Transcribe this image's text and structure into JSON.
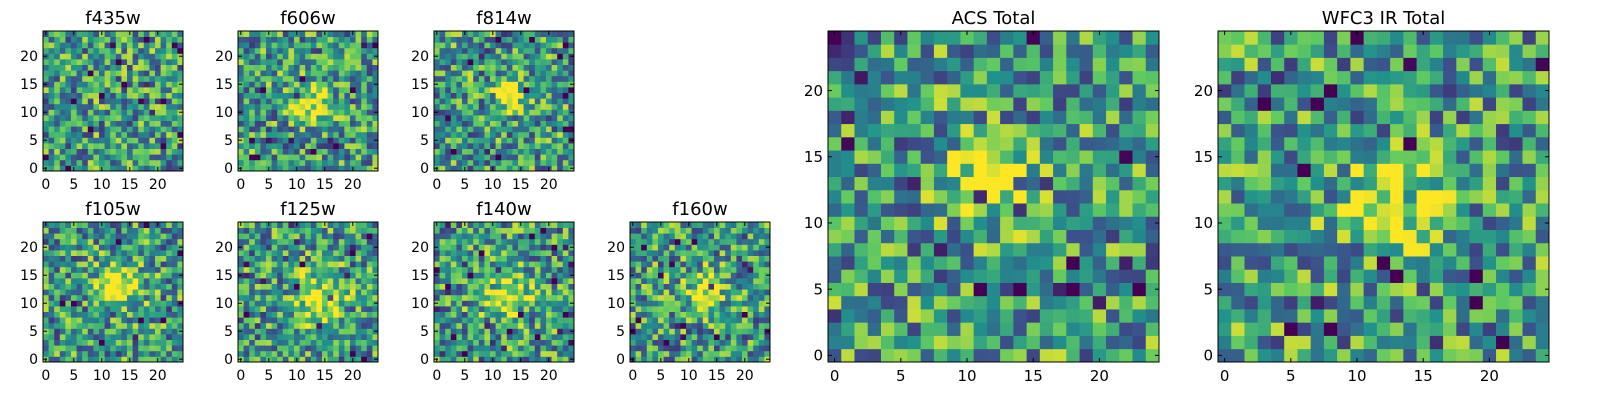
{
  "figure": {
    "colormap": [
      "#440154",
      "#3b528b",
      "#21918c",
      "#5ec962",
      "#fde725"
    ],
    "frame_color": "#000000",
    "background": "#ffffff"
  },
  "chart_data": [
    {
      "type": "heatmap",
      "title": "f435w",
      "grid": false,
      "xlim": [
        -0.5,
        24.5
      ],
      "ylim": [
        -0.5,
        24.5
      ],
      "xticks": [
        "0",
        "5",
        "10",
        "15",
        "20"
      ],
      "yticks": [
        "0",
        "5",
        "10",
        "15",
        "20"
      ],
      "size": 25,
      "values_note": "noise image, values in [0,1] normalized display",
      "peak": null
    },
    {
      "type": "heatmap",
      "title": "f606w",
      "grid": false,
      "xlim": [
        -0.5,
        24.5
      ],
      "ylim": [
        -0.5,
        24.5
      ],
      "xticks": [
        "0",
        "5",
        "10",
        "15",
        "20"
      ],
      "yticks": [
        "0",
        "5",
        "10",
        "15",
        "20"
      ],
      "size": 25,
      "peak": {
        "x": 13,
        "y": 12,
        "amplitude": 0.45,
        "sigma": 2.2
      }
    },
    {
      "type": "heatmap",
      "title": "f814w",
      "grid": false,
      "xlim": [
        -0.5,
        24.5
      ],
      "ylim": [
        -0.5,
        24.5
      ],
      "xticks": [
        "0",
        "5",
        "10",
        "15",
        "20"
      ],
      "yticks": [
        "0",
        "5",
        "10",
        "15",
        "20"
      ],
      "size": 25,
      "peak": {
        "x": 13,
        "y": 13,
        "amplitude": 0.45,
        "sigma": 2.0
      }
    },
    {
      "type": "heatmap",
      "title": "f105w",
      "grid": false,
      "xlim": [
        -0.5,
        24.5
      ],
      "ylim": [
        -0.5,
        24.5
      ],
      "xticks": [
        "0",
        "5",
        "10",
        "15",
        "20"
      ],
      "yticks": [
        "0",
        "5",
        "10",
        "15",
        "20"
      ],
      "size": 25,
      "peak": {
        "x": 13,
        "y": 13,
        "amplitude": 0.55,
        "sigma": 2.6
      }
    },
    {
      "type": "heatmap",
      "title": "f125w",
      "grid": false,
      "xlim": [
        -0.5,
        24.5
      ],
      "ylim": [
        -0.5,
        24.5
      ],
      "xticks": [
        "0",
        "5",
        "10",
        "15",
        "20"
      ],
      "yticks": [
        "0",
        "5",
        "10",
        "15",
        "20"
      ],
      "size": 25,
      "peak": {
        "x": 14,
        "y": 11,
        "amplitude": 0.5,
        "sigma": 3.0
      }
    },
    {
      "type": "heatmap",
      "title": "f140w",
      "grid": false,
      "xlim": [
        -0.5,
        24.5
      ],
      "ylim": [
        -0.5,
        24.5
      ],
      "xticks": [
        "0",
        "5",
        "10",
        "15",
        "20"
      ],
      "yticks": [
        "0",
        "5",
        "10",
        "15",
        "20"
      ],
      "size": 25,
      "peak": {
        "x": 12,
        "y": 12,
        "amplitude": 0.55,
        "sigma": 2.8
      }
    },
    {
      "type": "heatmap",
      "title": "f160w",
      "grid": false,
      "xlim": [
        -0.5,
        24.5
      ],
      "ylim": [
        -0.5,
        24.5
      ],
      "xticks": [
        "0",
        "5",
        "10",
        "15",
        "20"
      ],
      "yticks": [
        "0",
        "5",
        "10",
        "15",
        "20"
      ],
      "size": 25,
      "peak": {
        "x": 13,
        "y": 12,
        "amplitude": 0.45,
        "sigma": 2.4
      }
    },
    {
      "type": "heatmap",
      "title": "ACS Total",
      "grid": false,
      "xlim": [
        -0.5,
        24.5
      ],
      "ylim": [
        -0.5,
        24.5
      ],
      "xticks": [
        "0",
        "5",
        "10",
        "15",
        "20"
      ],
      "yticks": [
        "0",
        "5",
        "10",
        "15",
        "20"
      ],
      "size": 25,
      "peak": {
        "x": 12,
        "y": 13,
        "amplitude": 0.4,
        "sigma": 2.2
      }
    },
    {
      "type": "heatmap",
      "title": "WFC3 IR Total",
      "grid": false,
      "xlim": [
        -0.5,
        24.5
      ],
      "ylim": [
        -0.5,
        24.5
      ],
      "xticks": [
        "0",
        "5",
        "10",
        "15",
        "20"
      ],
      "yticks": [
        "0",
        "5",
        "10",
        "15",
        "20"
      ],
      "size": 25,
      "peak": {
        "x": 13,
        "y": 12,
        "amplitude": 0.5,
        "sigma": 2.6
      }
    }
  ]
}
